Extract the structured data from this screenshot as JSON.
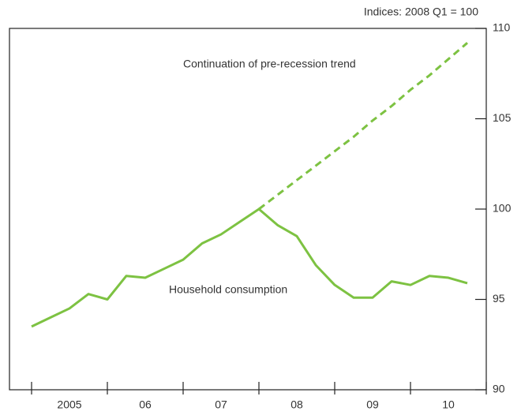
{
  "chart_data": {
    "type": "line",
    "subtitle": "Indices: 2008 Q1 = 100",
    "annotations": [
      "Continuation of pre-recession trend",
      "Household consumption"
    ],
    "categories": [
      "2005",
      null,
      null,
      null,
      "06",
      null,
      null,
      null,
      "07",
      null,
      null,
      null,
      "08",
      null,
      null,
      null,
      "09",
      null,
      null,
      null,
      "10",
      null,
      null,
      null
    ],
    "series": [
      {
        "name": "Household consumption",
        "color": "#7dc242",
        "dashed": false,
        "values": [
          93.5,
          94.0,
          94.5,
          95.3,
          95.0,
          96.3,
          96.2,
          96.7,
          97.2,
          98.1,
          98.6,
          99.3,
          100.0,
          99.1,
          98.5,
          96.9,
          95.8,
          95.1,
          95.1,
          96.0,
          95.8,
          96.3,
          96.2,
          95.9
        ]
      },
      {
        "name": "Continuation of pre-recession trend",
        "color": "#7dc242",
        "dashed": true,
        "values": [
          null,
          null,
          null,
          null,
          null,
          null,
          null,
          null,
          null,
          null,
          null,
          null,
          100.0,
          100.8,
          101.6,
          102.4,
          103.2,
          104.0,
          104.9,
          105.7,
          106.6,
          107.4,
          108.3,
          109.2
        ]
      }
    ],
    "ylim": [
      90,
      110
    ],
    "yticks": [
      90,
      95,
      100,
      105,
      110
    ],
    "grid": false
  }
}
